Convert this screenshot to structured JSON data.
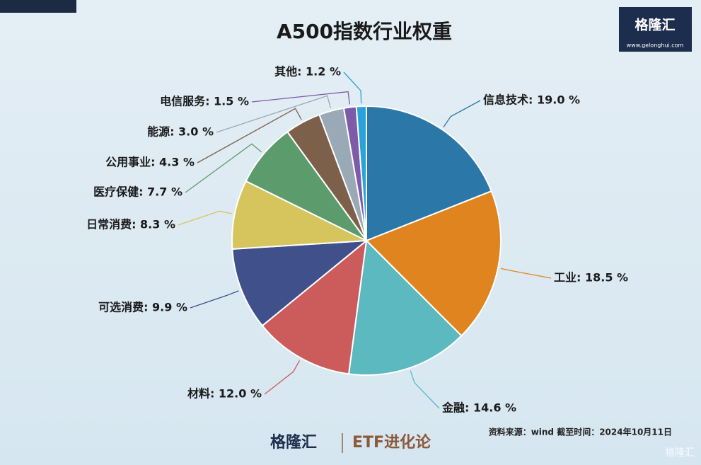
{
  "chart_data": {
    "type": "pie",
    "title": "A500指数行业权重",
    "categories": [
      "信息技术: 19.0 %",
      "工业: 18.5 %",
      "金融: 14.6 %",
      "材料: 12.0 %",
      "可选消费: 9.9 %",
      "日常消费: 8.3 %",
      "医疗保健: 7.7 %",
      "公用事业: 4.3 %",
      "能源: 3.0 %",
      "电信服务: 1.5 %",
      "其他: 1.2 %"
    ],
    "values": [
      19.0,
      18.5,
      14.6,
      12.0,
      9.9,
      8.3,
      7.7,
      4.3,
      3.0,
      1.5,
      1.2
    ],
    "colors": [
      "#2b78a8",
      "#e0841f",
      "#5bb9bf",
      "#cc5b5c",
      "#3f508b",
      "#d5c55c",
      "#5c9b6c",
      "#7d6049",
      "#9aa9b6",
      "#7d5ba8",
      "#2ba2da"
    ],
    "source": "资料来源：wind  截至时间：2024年10月11日"
  },
  "branding": {
    "logo": "格隆汇",
    "url": "www.gelonghui.com",
    "footer_logo": "格隆汇",
    "footer_tag": "ETF进化论",
    "watermark": "格隆汇"
  }
}
